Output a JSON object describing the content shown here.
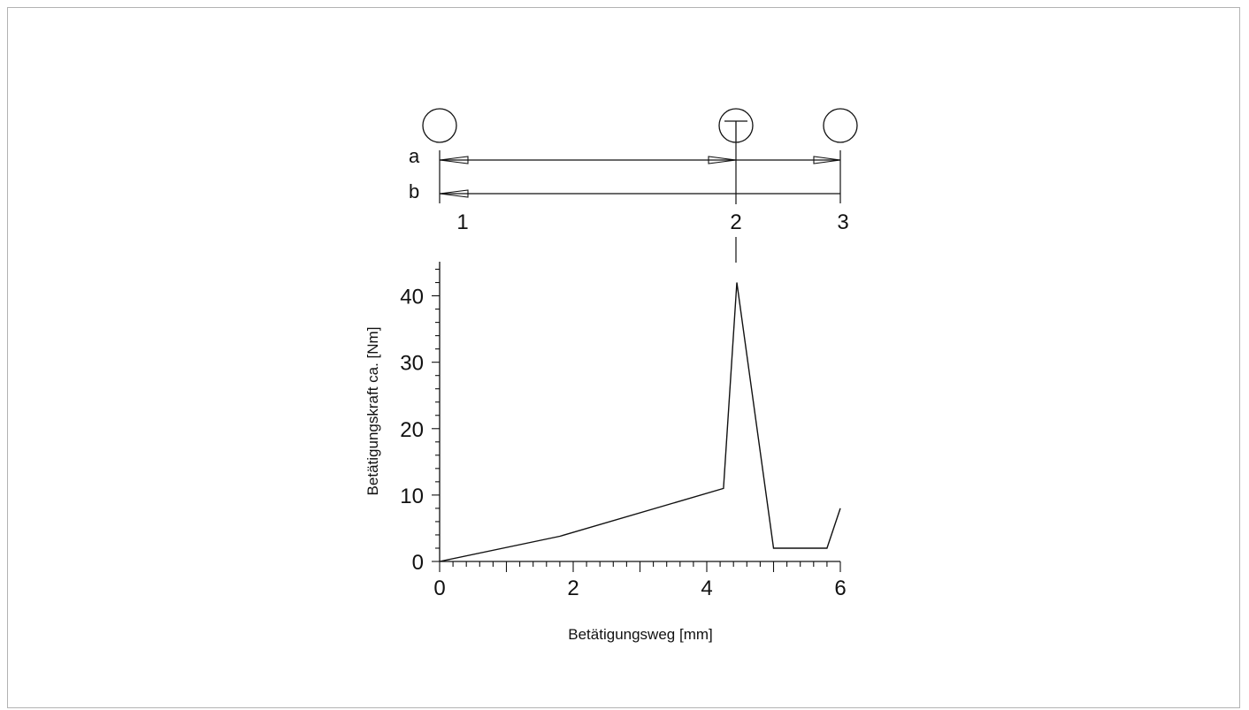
{
  "chart_data": {
    "type": "line",
    "xlabel": "Betätigungsweg [mm]",
    "ylabel": "Betätigungskraft ca. [Nm]",
    "xlim": [
      0,
      6
    ],
    "ylim": [
      0,
      45
    ],
    "x_ticks": [
      "0",
      "2",
      "4",
      "6"
    ],
    "y_ticks": [
      "0",
      "10",
      "20",
      "30",
      "40"
    ],
    "series": [
      {
        "x": [
          0,
          1.8,
          4.25,
          4.45,
          5.0,
          5.8,
          6.0
        ],
        "y": [
          0,
          3.8,
          11,
          42,
          2,
          2,
          8
        ]
      }
    ],
    "grid": false
  },
  "switching_diagram": {
    "rows": [
      "a",
      "b"
    ],
    "positions": [
      "1",
      "2",
      "3"
    ],
    "position_x": [
      0,
      4.45,
      6.0
    ],
    "symbols": [
      {
        "name": "open-circle",
        "at_x": 0
      },
      {
        "name": "circle-with-t",
        "at_x": 4.45
      },
      {
        "name": "open-circle",
        "at_x": 6.0
      }
    ]
  },
  "colors": {
    "line": "#111111",
    "frame": "#b3b3b3"
  }
}
